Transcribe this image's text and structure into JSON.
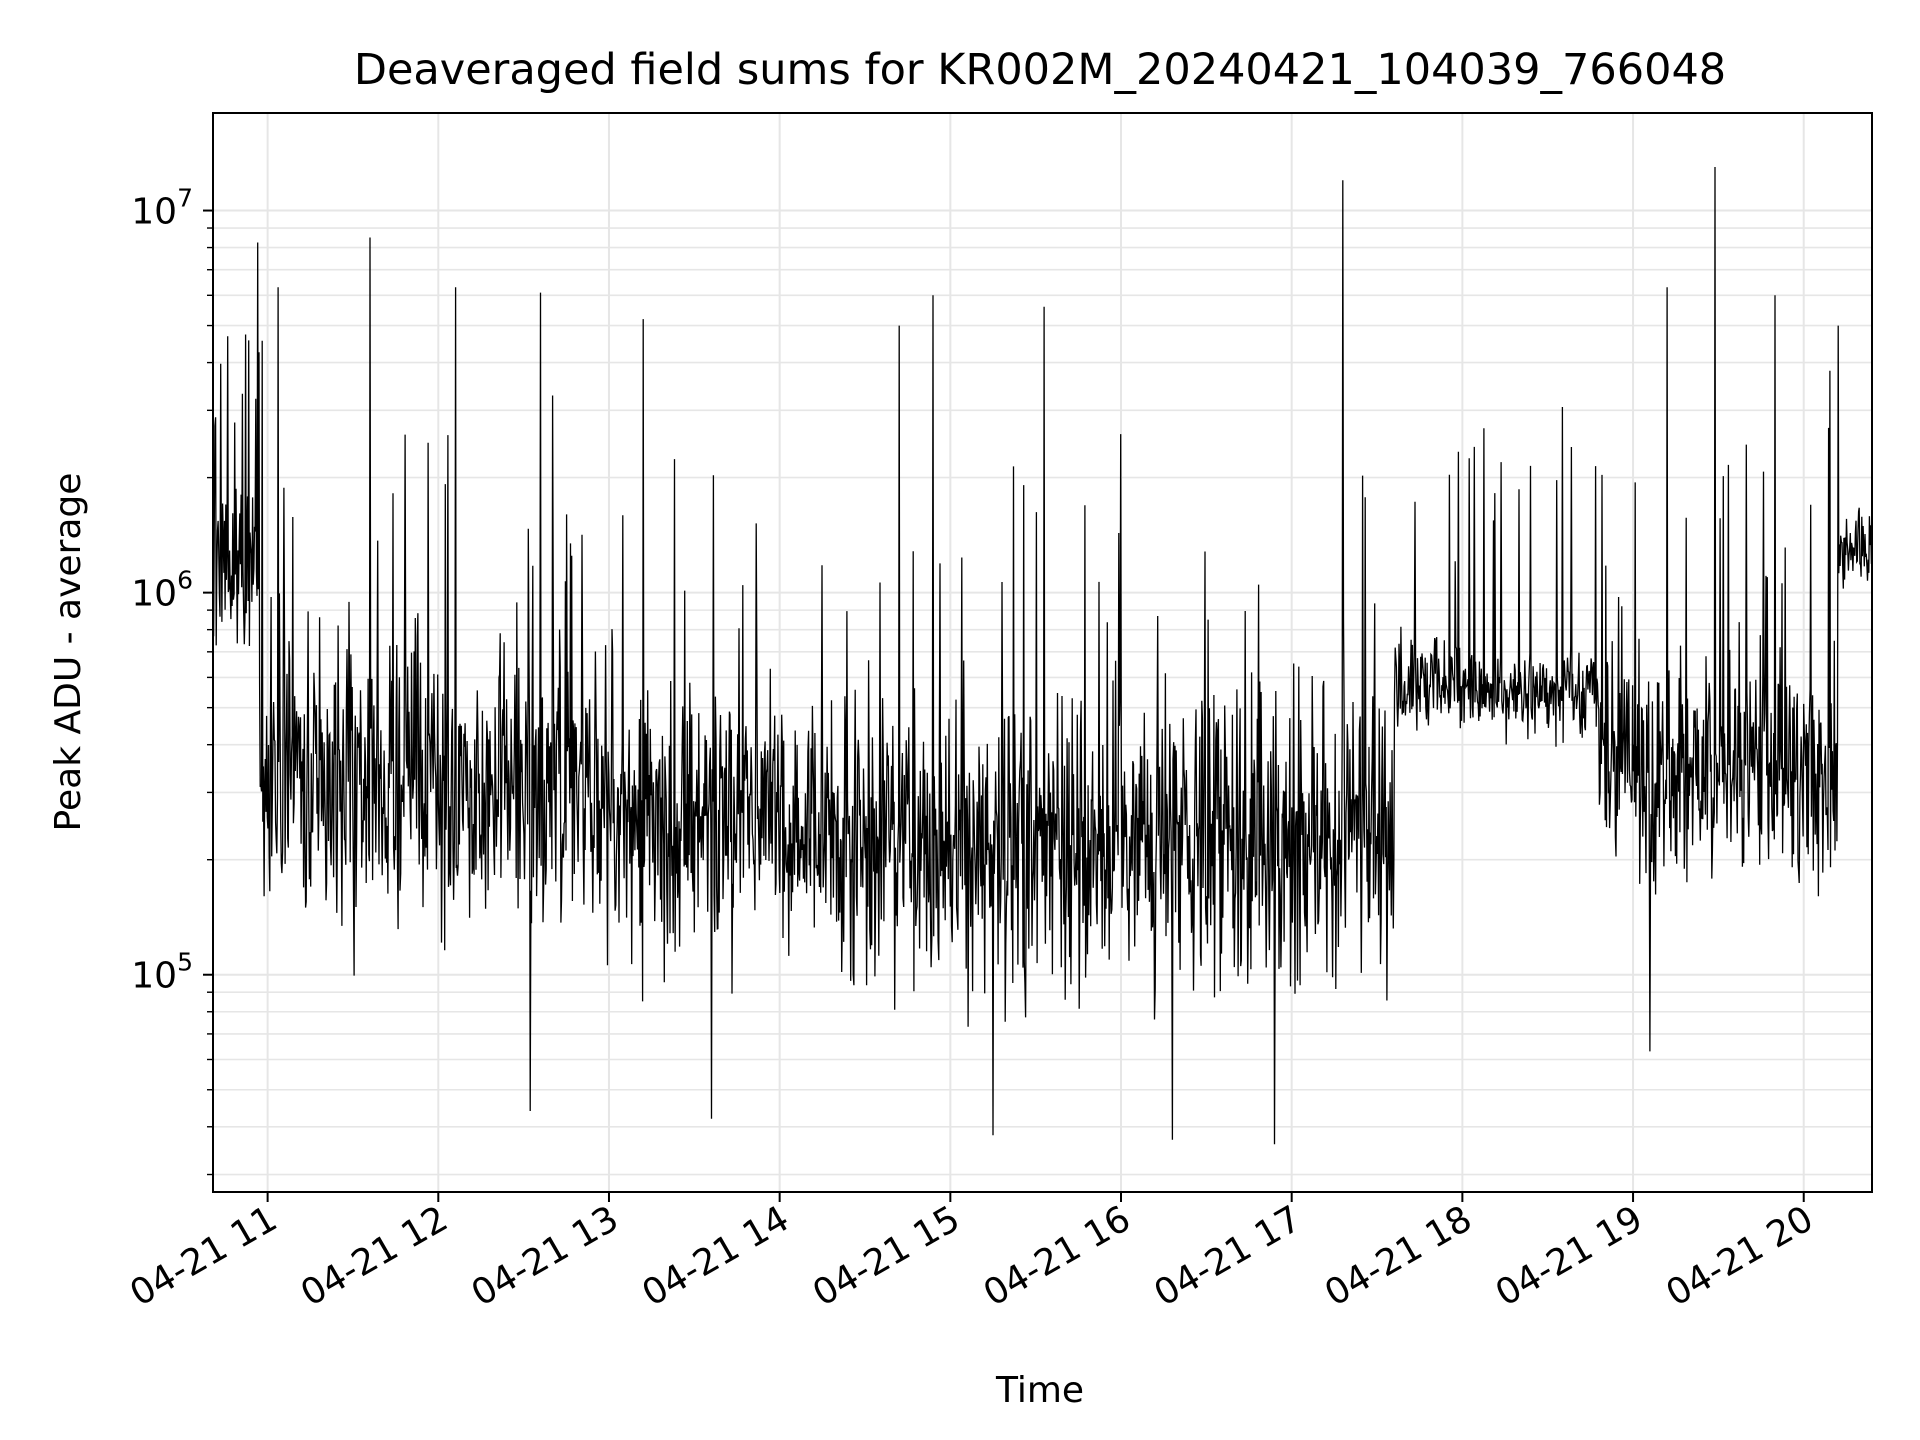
{
  "chart_data": {
    "type": "line",
    "title": "Deaveraged field sums for KR002M_20240421_104039_766048",
    "xlabel": "Time",
    "ylabel": "Peak ADU - average",
    "x_tick_labels": [
      "04-21 11",
      "04-21 12",
      "04-21 13",
      "04-21 14",
      "04-21 15",
      "04-21 16",
      "04-21 17",
      "04-21 18",
      "04-21 19",
      "04-21 20"
    ],
    "x_ticks_hours": [
      11,
      12,
      13,
      14,
      15,
      16,
      17,
      18,
      19,
      20
    ],
    "xlim_hours": [
      10.68,
      20.4
    ],
    "y_scale": "log",
    "ylim": [
      27000,
      18000000
    ],
    "y_major_ticks": [
      {
        "value": 100000,
        "base": "10",
        "exp": "5"
      },
      {
        "value": 1000000,
        "base": "10",
        "exp": "6"
      },
      {
        "value": 10000000,
        "base": "10",
        "exp": "7"
      }
    ],
    "grid": true,
    "grid_minor_y": true,
    "legend": "none",
    "series_color": "#000000",
    "segments": [
      {
        "start_hour": 10.68,
        "end_hour": 10.95,
        "median": 1100000,
        "spread": 2.0,
        "spike_rate": 0.08
      },
      {
        "start_hour": 10.95,
        "end_hour": 11.3,
        "median": 320000,
        "spread": 3.5,
        "spike_rate": 0.05
      },
      {
        "start_hour": 11.3,
        "end_hour": 13.0,
        "median": 300000,
        "spread": 3.3,
        "spike_rate": 0.05
      },
      {
        "start_hour": 13.0,
        "end_hour": 14.3,
        "median": 250000,
        "spread": 3.2,
        "spike_rate": 0.04
      },
      {
        "start_hour": 14.3,
        "end_hour": 17.6,
        "median": 220000,
        "spread": 3.4,
        "spike_rate": 0.04
      },
      {
        "start_hour": 17.6,
        "end_hour": 18.8,
        "median": 560000,
        "spread": 1.5,
        "spike_rate": 0.04
      },
      {
        "start_hour": 18.8,
        "end_hour": 20.2,
        "median": 350000,
        "spread": 2.8,
        "spike_rate": 0.05
      },
      {
        "start_hour": 20.2,
        "end_hour": 20.4,
        "median": 1300000,
        "spread": 1.4,
        "spike_rate": 0.05
      }
    ],
    "notable_peaks": [
      {
        "hour": 11.06,
        "value": 6300000
      },
      {
        "hour": 11.6,
        "value": 8500000
      },
      {
        "hour": 12.1,
        "value": 6300000
      },
      {
        "hour": 13.2,
        "value": 5200000
      },
      {
        "hour": 14.7,
        "value": 5000000
      },
      {
        "hour": 14.9,
        "value": 6000000
      },
      {
        "hour": 15.55,
        "value": 5600000
      },
      {
        "hour": 17.3,
        "value": 12000000
      },
      {
        "hour": 19.48,
        "value": 13000000
      },
      {
        "hour": 19.2,
        "value": 6300000
      },
      {
        "hour": 19.83,
        "value": 6000000
      },
      {
        "hour": 20.2,
        "value": 5000000
      },
      {
        "hour": 16.0,
        "value": 2600000
      },
      {
        "hour": 12.6,
        "value": 6100000
      }
    ],
    "notable_troughs": [
      {
        "hour": 12.54,
        "value": 44000
      },
      {
        "hour": 13.6,
        "value": 42000
      },
      {
        "hour": 15.25,
        "value": 38000
      },
      {
        "hour": 16.3,
        "value": 37000
      },
      {
        "hour": 16.9,
        "value": 36000
      },
      {
        "hour": 19.1,
        "value": 63000
      }
    ]
  }
}
